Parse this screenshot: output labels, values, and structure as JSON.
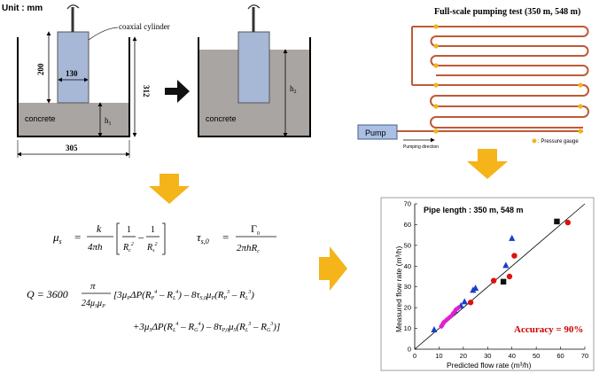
{
  "colors": {
    "concrete": "#a9a5a2",
    "cylinder": "#a7b8d6",
    "pipe": "#bf5a36",
    "gauge": "#f2b51a",
    "pump_box": "#a9bfe3",
    "accuracy_red": "#cc0000",
    "arrow_orange": "#f2b51a"
  },
  "viscometer": {
    "unit_label": "Unit : mm",
    "cylinder_label": "coaxial cylinder",
    "dim_200": "200",
    "dim_130": "130",
    "dim_312": "312",
    "dim_305": "305",
    "h1": "h",
    "h1_sub": "1",
    "h2": "h",
    "h2_sub": "2",
    "concrete_left": "concrete",
    "concrete_right": "concrete"
  },
  "pumping": {
    "title": "Full-scale pumping test (350 m, 548  m)",
    "pump_label": "Pump",
    "direction_label": "Pumping direction",
    "gauge_label": ": Pressure gauge"
  },
  "equations": {
    "mu": "μ",
    "mu_sub": "s",
    "k": "k",
    "denom1": "4πh",
    "one": "1",
    "Rc": "R",
    "Rc_sub": "c",
    "Rs": "R",
    "Rs_sub": "s",
    "tau": "τ",
    "tau_sub": "s,0",
    "gamma": "Γ",
    "gamma_sub": "0",
    "denom2": "2πhR",
    "denom2_sub": "c",
    "Q_line1": "Q = 3600",
    "pi": "π",
    "denom3": "24μ",
    "line1_body": "[3μ",
    "line2_body": "+3μ"
  },
  "chart_data": {
    "type": "scatter",
    "annotation": "Pipe length : 350 m, 548 m",
    "accuracy": "Accuracy = 90%",
    "xlabel": "Predicted flow rate (m³/h)",
    "ylabel": "Measured flow rate (m³/h)",
    "xlim": [
      0,
      70
    ],
    "ylim": [
      0,
      70
    ],
    "xticks": [
      0,
      10,
      20,
      30,
      40,
      50,
      60,
      70
    ],
    "yticks": [
      0,
      10,
      20,
      30,
      40,
      50,
      60,
      70
    ],
    "reference_line": [
      [
        0,
        0
      ],
      [
        70,
        70
      ]
    ],
    "series": [
      {
        "marker": "square",
        "color": "#111111",
        "points": [
          [
            58.5,
            61.5
          ],
          [
            36.5,
            32.5
          ]
        ]
      },
      {
        "marker": "circle",
        "color": "#e01010",
        "points": [
          [
            63,
            61
          ],
          [
            41,
            45
          ],
          [
            39,
            35
          ],
          [
            32.5,
            33
          ],
          [
            23,
            22.5
          ]
        ]
      },
      {
        "marker": "triangle",
        "color": "#1a3ec8",
        "points": [
          [
            40,
            53.5
          ],
          [
            37.5,
            40.5
          ],
          [
            25,
            29.5
          ],
          [
            24,
            28.5
          ],
          [
            20.5,
            23
          ],
          [
            19,
            21
          ],
          [
            16.5,
            18.5
          ],
          [
            8,
            9.5
          ]
        ]
      },
      {
        "marker": "diamond",
        "color": "#e020d0",
        "points": [
          [
            18,
            20
          ],
          [
            17,
            19
          ],
          [
            16,
            17.5
          ],
          [
            15,
            16
          ],
          [
            14,
            15
          ],
          [
            13,
            14
          ],
          [
            12,
            13
          ],
          [
            11.5,
            12
          ],
          [
            11,
            11
          ]
        ]
      }
    ]
  }
}
